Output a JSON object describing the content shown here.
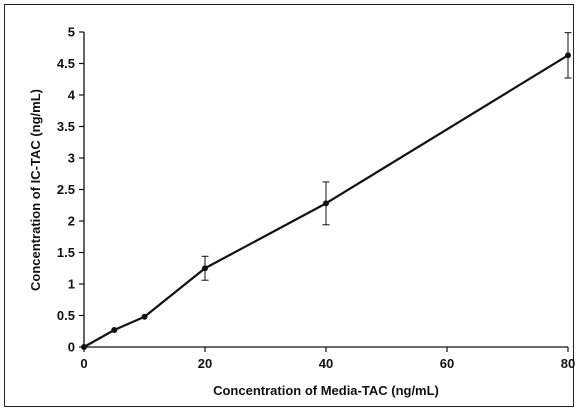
{
  "chart_data": {
    "type": "line",
    "title": "",
    "xlabel": "Concentration of Media-TAC (ng/mL)",
    "ylabel": "Concentration of IC-TAC (ng/mL)",
    "xlim": [
      0,
      80
    ],
    "ylim": [
      0,
      5
    ],
    "xticks": [
      "0",
      "20",
      "40",
      "60",
      "80"
    ],
    "yticks": [
      "0",
      "0.5",
      "1",
      "1.5",
      "2",
      "2.5",
      "3",
      "3.5",
      "4",
      "4.5",
      "5"
    ],
    "grid": false,
    "legend": "none",
    "series": [
      {
        "x": [
          0,
          5,
          10,
          20,
          40,
          80
        ],
        "y": [
          0,
          0.27,
          0.48,
          1.25,
          2.28,
          4.63
        ],
        "error_bars": [
          0,
          0,
          0,
          0.19,
          0.34,
          0.36
        ],
        "color": "#111111"
      }
    ]
  }
}
